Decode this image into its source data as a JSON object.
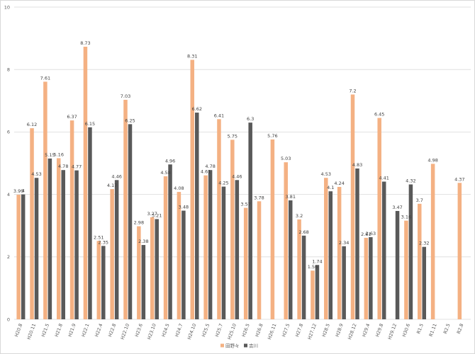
{
  "chart_data": {
    "type": "bar",
    "categories": [
      "H20.8",
      "H20.11",
      "H21.5",
      "H21.8",
      "H21.9",
      "H22.1",
      "H22.4",
      "H22.8",
      "H22.10",
      "H23.6",
      "H23.10",
      "H24.5",
      "H24.7",
      "H24.10",
      "H25.5",
      "H25.7",
      "H25.10",
      "H26.5",
      "H26.8",
      "H26.11",
      "H27.5",
      "H27.8",
      "H27.12",
      "H28.5",
      "H28.9",
      "H28.12",
      "H29.4",
      "H29.8",
      "H29.12",
      "H30.6",
      "R1.5",
      "R1.11",
      "R2.5",
      "R2.8"
    ],
    "series": [
      {
        "name": "田野々",
        "color": "#f4b183",
        "values": [
          3.99,
          6.12,
          7.61,
          5.16,
          6.37,
          8.73,
          2.51,
          4.17,
          7.03,
          2.98,
          3.27,
          4.58,
          4.08,
          8.31,
          4.61,
          6.41,
          5.75,
          3.57,
          3.78,
          5.76,
          5.03,
          3.2,
          1.56,
          4.53,
          4.24,
          7.2,
          2.61,
          6.45,
          null,
          3.16,
          3.7,
          4.98,
          null,
          4.37
        ]
      },
      {
        "name": "吉川",
        "color": "#595959",
        "values": [
          4,
          4.53,
          5.15,
          4.78,
          4.77,
          6.15,
          2.35,
          4.46,
          6.25,
          2.38,
          3.21,
          4.96,
          3.48,
          6.62,
          4.78,
          4.25,
          4.46,
          6.3,
          null,
          null,
          3.81,
          2.68,
          1.74,
          4.1,
          2.34,
          4.83,
          2.63,
          4.41,
          3.47,
          4.32,
          2.32,
          null,
          null,
          null
        ]
      }
    ],
    "ylim": [
      0,
      10
    ],
    "y_ticks": [
      0,
      2,
      4,
      6,
      8,
      10
    ],
    "grid": true,
    "legend": "bottom",
    "data_labels": true
  }
}
